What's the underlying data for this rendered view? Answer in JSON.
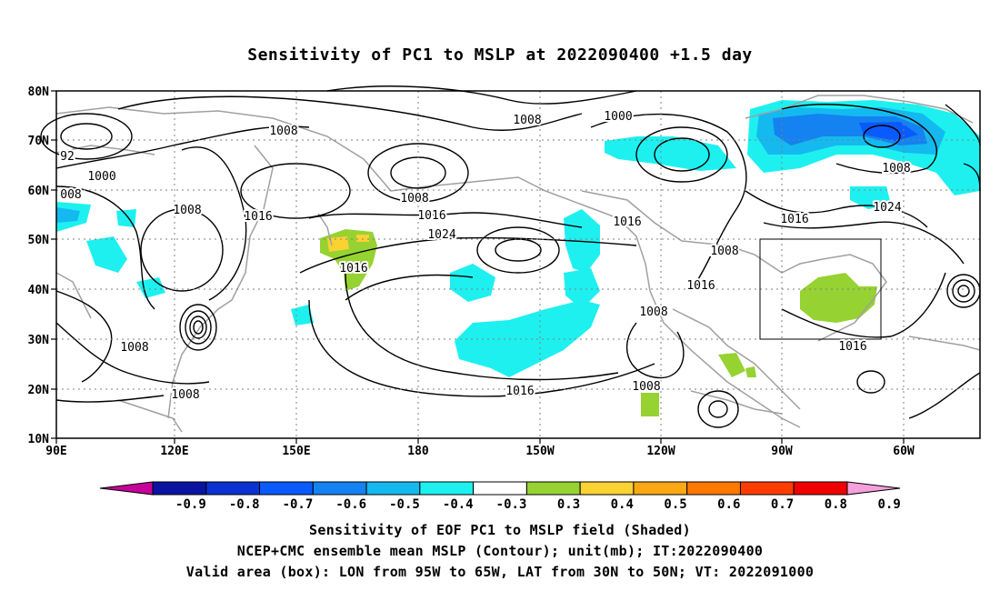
{
  "title": "Sensitivity of PC1 to MSLP at 2022090400 +1.5 day",
  "lat_labels": [
    "80N",
    "70N",
    "60N",
    "50N",
    "40N",
    "30N",
    "20N",
    "10N"
  ],
  "lon_labels": [
    "90E",
    "120E",
    "150E",
    "180",
    "150W",
    "120W",
    "90W",
    "60W"
  ],
  "contour_labels": [
    {
      "text": "1008",
      "id": "c1"
    },
    {
      "text": "1000",
      "id": "c2"
    },
    {
      "text": "92",
      "id": "c3"
    },
    {
      "text": "008",
      "id": "c4"
    },
    {
      "text": "1008",
      "id": "c5"
    },
    {
      "text": "1016",
      "id": "c6"
    },
    {
      "text": "1008",
      "id": "c7"
    },
    {
      "text": "1016",
      "id": "c8"
    },
    {
      "text": "1024",
      "id": "c9"
    },
    {
      "text": "1016",
      "id": "c10"
    },
    {
      "text": "1008",
      "id": "c11"
    },
    {
      "text": "1000",
      "id": "c12"
    },
    {
      "text": "1016",
      "id": "c13"
    },
    {
      "text": "1008",
      "id": "c14"
    },
    {
      "text": "1016",
      "id": "c15"
    },
    {
      "text": "1008",
      "id": "c16"
    },
    {
      "text": "1008",
      "id": "c17"
    },
    {
      "text": "1016",
      "id": "c18"
    },
    {
      "text": "1008",
      "id": "c19"
    },
    {
      "text": "1016",
      "id": "c20"
    },
    {
      "text": "1024",
      "id": "c21"
    },
    {
      "text": "1008",
      "id": "c22"
    },
    {
      "text": "1016",
      "id": "c23"
    },
    {
      "text": "1008",
      "id": "c24"
    }
  ],
  "colorbar": {
    "labels": [
      "-0.9",
      "-0.8",
      "-0.7",
      "-0.6",
      "-0.5",
      "-0.4",
      "-0.3",
      "0.3",
      "0.4",
      "0.5",
      "0.6",
      "0.7",
      "0.8",
      "0.9"
    ],
    "colors": [
      "#c8009a",
      "#0a14a0",
      "#0a32d2",
      "#0a5aff",
      "#1482f0",
      "#14b9f0",
      "#1ef0f0",
      "#ffffff",
      "#96d232",
      "#fad232",
      "#fba814",
      "#ff7800",
      "#ff3c00",
      "#f00000",
      "#f5a0dc"
    ]
  },
  "footer": {
    "line1": "Sensitivity of EOF PC1 to MSLP field (Shaded)",
    "line2": "NCEP+CMC ensemble mean MSLP (Contour); unit(mb); IT:2022090400",
    "line3": "Valid area (box): LON from 95W to 65W, LAT from 30N to 50N; VT: 2022091000"
  }
}
